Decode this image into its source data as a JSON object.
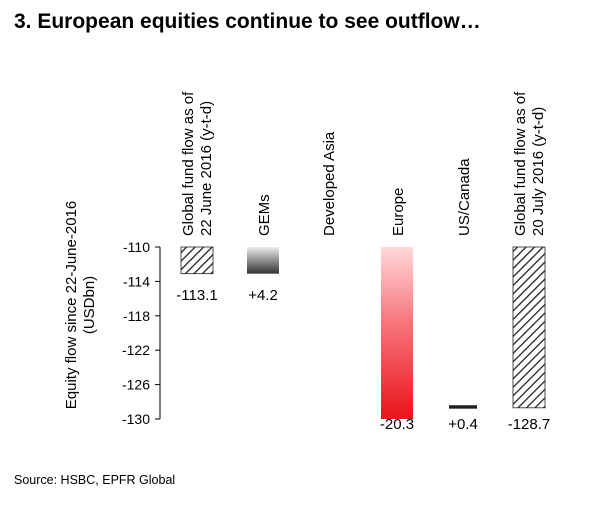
{
  "title": "3. European equities continue to see outflow…",
  "source": "Source: HSBC, EPFR Global",
  "chart_data": {
    "type": "bar",
    "subtype": "waterfall",
    "ylabel": "Equity flow since 22-June-2016 (USDbn)",
    "ylim": [
      -130,
      -110
    ],
    "yticks": [
      -110,
      -114,
      -118,
      -122,
      -126,
      -130
    ],
    "ytick_labels": [
      "-110",
      "-114",
      "-118",
      "-122",
      "-126",
      "-130"
    ],
    "grid": false,
    "categories": [
      "Global fund flow as of 22 June 2016 (y-t-d)",
      "GEMs",
      "Developed Asia",
      "Europe",
      "US/Canada",
      "Global fund flow as of 20 July 2016 (y-t-d)"
    ],
    "category_labels": [
      [
        "Global fund flow as of",
        "22 June 2016 (y-t-d)"
      ],
      [
        "GEMs"
      ],
      [
        "Developed Asia"
      ],
      [
        "Europe"
      ],
      [
        "US/Canada"
      ],
      [
        "Global fund flow as of",
        "20 July 2016 (y-t-d)"
      ]
    ],
    "bars": [
      {
        "start": -110,
        "end": -113.1,
        "label": "-113.1",
        "style": "hatch"
      },
      {
        "start": -113.1,
        "end": -110,
        "label": "+4.2",
        "style": "gray-gradient"
      },
      {
        "start": -110,
        "end": -110,
        "label": "",
        "style": "none"
      },
      {
        "start": -110,
        "end": -130,
        "label": "-20.3",
        "style": "red-gradient"
      },
      {
        "start": -128.8,
        "end": -128.4,
        "label": "+0.4",
        "style": "dark"
      },
      {
        "start": -110,
        "end": -128.7,
        "label": "-128.7",
        "style": "hatch"
      }
    ],
    "colors": {
      "red": "#e8141b",
      "gray": "#555555",
      "dark": "#222222",
      "hatch": "#222222"
    }
  }
}
